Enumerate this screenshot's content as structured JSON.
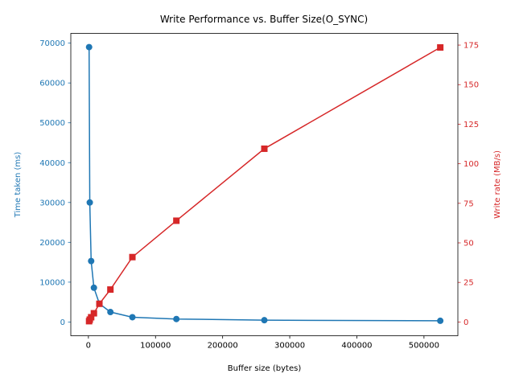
{
  "chart_data": {
    "type": "line",
    "title": "Write Performance vs. Buffer Size(O_SYNC)",
    "xlabel": "Buffer size (bytes)",
    "ylabel_left": "Time taken (ms)",
    "ylabel_right": "Write rate (MB/s)",
    "xlim": [
      -26214,
      550502
    ],
    "ylim_left": [
      -3450,
      72450
    ],
    "ylim_right": [
      -8.7,
      182.4
    ],
    "xticks": [
      0,
      100000,
      200000,
      300000,
      400000,
      500000
    ],
    "xtick_labels": [
      "0",
      "100000",
      "200000",
      "300000",
      "400000",
      "500000"
    ],
    "yticks_left": [
      0,
      10000,
      20000,
      30000,
      40000,
      50000,
      60000,
      70000
    ],
    "ytick_labels_left": [
      "0",
      "10000",
      "20000",
      "30000",
      "40000",
      "50000",
      "60000",
      "70000"
    ],
    "yticks_right": [
      0,
      25,
      50,
      75,
      100,
      125,
      150,
      175
    ],
    "ytick_labels_right": [
      "0",
      "25",
      "50",
      "75",
      "100",
      "125",
      "150",
      "175"
    ],
    "grid": false,
    "legend": "none",
    "series": [
      {
        "axis": "left",
        "color": "#1f77b4",
        "marker": "circle",
        "x": [
          1024,
          2048,
          4096,
          8192,
          16384,
          32768,
          65536,
          131072,
          262144,
          524288
        ],
        "y": [
          69000,
          30000,
          15300,
          8600,
          4600,
          2500,
          1200,
          750,
          450,
          300
        ]
      },
      {
        "axis": "right",
        "color": "#d62728",
        "marker": "square",
        "x": [
          1024,
          2048,
          4096,
          8192,
          16384,
          32768,
          65536,
          131072,
          262144,
          524288
        ],
        "y": [
          0.5,
          1.5,
          3,
          5.5,
          11.5,
          20.5,
          41,
          64,
          109.5,
          173.5
        ]
      }
    ]
  }
}
